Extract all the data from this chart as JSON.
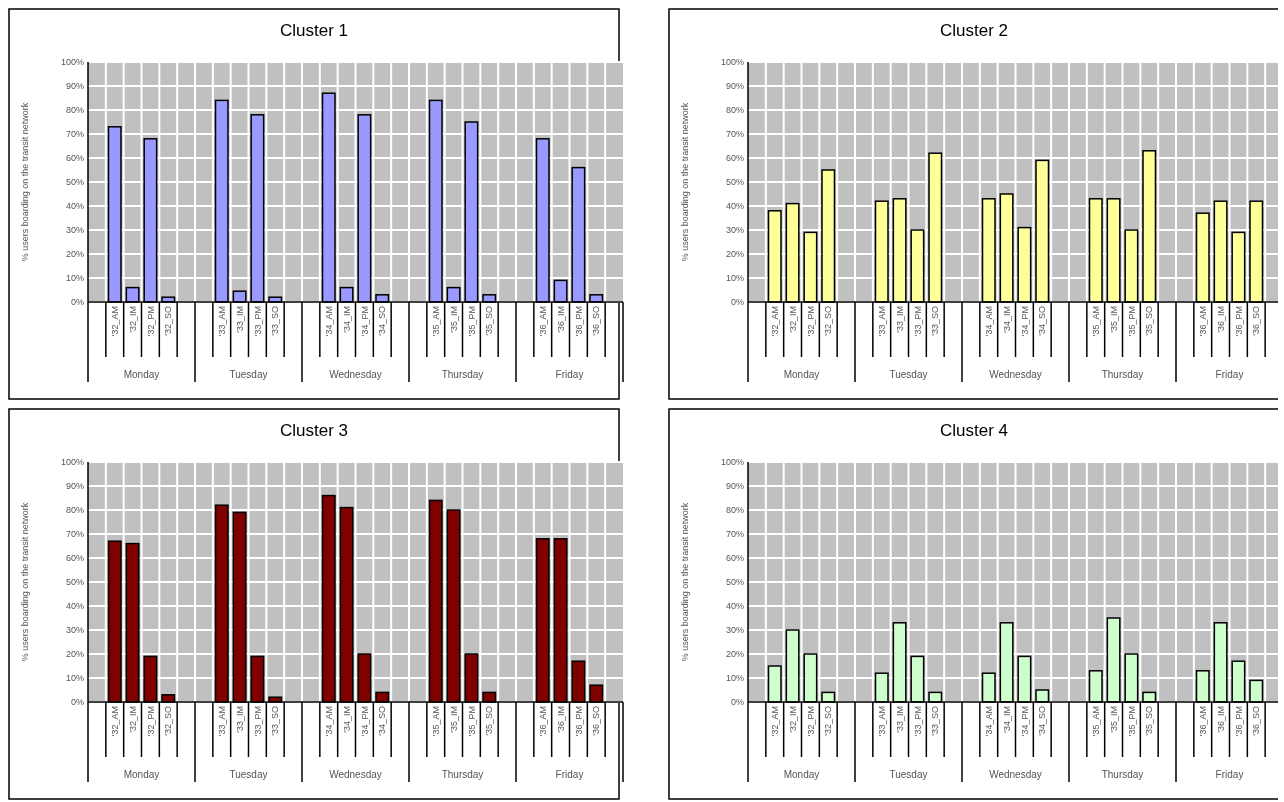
{
  "chart_data": [
    {
      "type": "bar",
      "title": "Cluster 1",
      "ylabel": "% users boarding on the transit network",
      "categories": [
        null,
        "'32_AM",
        "'32_IM",
        "'32_PM",
        "'32_SO",
        null,
        null,
        "'33_AM",
        "'33_IM",
        "'33_PM",
        "'33_SO",
        null,
        null,
        "'34_AM",
        "'34_IM",
        "'34_PM",
        "'34_SO",
        null,
        null,
        "'35_AM",
        "'35_IM",
        "'35_PM",
        "'35_SO",
        null,
        null,
        "'36_AM",
        "'36_IM",
        "'36_PM",
        "'36_SO",
        null
      ],
      "annotations": [
        "Monday",
        "Tuesday",
        "Wednesday",
        "Thursday",
        "Friday"
      ],
      "values": [
        null,
        73,
        6,
        68,
        2,
        null,
        null,
        84,
        4.5,
        78,
        2,
        null,
        null,
        87,
        6,
        78,
        3,
        null,
        null,
        84,
        6,
        75,
        3,
        null,
        null,
        68,
        9,
        56,
        3,
        null
      ],
      "color": "#9999ff",
      "ylim": [
        0,
        100
      ],
      "yticks": [
        {
          "value": 0,
          "label": "0%"
        },
        {
          "value": 10,
          "label": "10%"
        },
        {
          "value": 20,
          "label": "20%"
        },
        {
          "value": 30,
          "label": "30%"
        },
        {
          "value": 40,
          "label": "40%"
        },
        {
          "value": 50,
          "label": "50%"
        },
        {
          "value": 60,
          "label": "60%"
        },
        {
          "value": 70,
          "label": "70%"
        },
        {
          "value": 80,
          "label": "80%"
        },
        {
          "value": 90,
          "label": "90%"
        },
        {
          "value": 100,
          "label": "100%"
        }
      ],
      "grid": true
    },
    {
      "type": "bar",
      "title": "Cluster 2",
      "ylabel": "% users boarding on the transit network",
      "categories": [
        null,
        "'32_AM",
        "'32_IM",
        "'32_PM",
        "'32_SO",
        null,
        null,
        "'33_AM",
        "'33_IM",
        "'33_PM",
        "'33_SO",
        null,
        null,
        "'34_AM",
        "'34_IM",
        "'34_PM",
        "'34_SO",
        null,
        null,
        "'35_AM",
        "'35_IM",
        "'35_PM",
        "'35_SO",
        null,
        null,
        "'36_AM",
        "'36_IM",
        "'36_PM",
        "'36_SO",
        null
      ],
      "annotations": [
        "Monday",
        "Tuesday",
        "Wednesday",
        "Thursday",
        "Friday"
      ],
      "values": [
        null,
        38,
        41,
        29,
        55,
        null,
        null,
        42,
        43,
        30,
        62,
        null,
        null,
        43,
        45,
        31,
        59,
        null,
        null,
        43,
        43,
        30,
        63,
        null,
        null,
        37,
        42,
        29,
        42,
        null
      ],
      "color": "#ffff99",
      "ylim": [
        0,
        100
      ],
      "yticks": [
        {
          "value": 0,
          "label": "0%"
        },
        {
          "value": 10,
          "label": "10%"
        },
        {
          "value": 20,
          "label": "20%"
        },
        {
          "value": 30,
          "label": "30%"
        },
        {
          "value": 40,
          "label": "40%"
        },
        {
          "value": 50,
          "label": "50%"
        },
        {
          "value": 60,
          "label": "60%"
        },
        {
          "value": 70,
          "label": "70%"
        },
        {
          "value": 80,
          "label": "80%"
        },
        {
          "value": 90,
          "label": "90%"
        },
        {
          "value": 100,
          "label": "100%"
        }
      ],
      "grid": true
    },
    {
      "type": "bar",
      "title": "Cluster 3",
      "ylabel": "% users boarding on the transit network",
      "categories": [
        null,
        "'32_AM",
        "'32_IM",
        "'32_PM",
        "'32_SO",
        null,
        null,
        "'33_AM",
        "'33_IM",
        "'33_PM",
        "'33_SO",
        null,
        null,
        "'34_AM",
        "'34_IM",
        "'34_PM",
        "'34_SO",
        null,
        null,
        "'35_AM",
        "'35_IM",
        "'35_PM",
        "'35_SO",
        null,
        null,
        "'36_AM",
        "'36_IM",
        "'36_PM",
        "'36_SO",
        null
      ],
      "annotations": [
        "Monday",
        "Tuesday",
        "Wednesday",
        "Thursday",
        "Friday"
      ],
      "values": [
        null,
        67,
        66,
        19,
        3,
        null,
        null,
        82,
        79,
        19,
        2,
        null,
        null,
        86,
        81,
        20,
        4,
        null,
        null,
        84,
        80,
        20,
        4,
        null,
        null,
        68,
        68,
        17,
        7,
        null
      ],
      "color": "#800000",
      "ylim": [
        0,
        100
      ],
      "yticks": [
        {
          "value": 0,
          "label": "0%"
        },
        {
          "value": 10,
          "label": "10%"
        },
        {
          "value": 20,
          "label": "20%"
        },
        {
          "value": 30,
          "label": "30%"
        },
        {
          "value": 40,
          "label": "40%"
        },
        {
          "value": 50,
          "label": "50%"
        },
        {
          "value": 60,
          "label": "60%"
        },
        {
          "value": 70,
          "label": "70%"
        },
        {
          "value": 80,
          "label": "80%"
        },
        {
          "value": 90,
          "label": "90%"
        },
        {
          "value": 100,
          "label": "100%"
        }
      ],
      "grid": true
    },
    {
      "type": "bar",
      "title": "Cluster 4",
      "ylabel": "% users boarding on the transit network",
      "categories": [
        null,
        "'32_AM",
        "'32_IM",
        "'32_PM",
        "'32_SO",
        null,
        null,
        "'33_AM",
        "'33_IM",
        "'33_PM",
        "'33_SO",
        null,
        null,
        "'34_AM",
        "'34_IM",
        "'34_PM",
        "'34_SO",
        null,
        null,
        "'35_AM",
        "'35_IM",
        "'35_PM",
        "'35_SO",
        null,
        null,
        "'36_AM",
        "'36_IM",
        "'36_PM",
        "'36_SO",
        null
      ],
      "annotations": [
        "Monday",
        "Tuesday",
        "Wednesday",
        "Thursday",
        "Friday"
      ],
      "values": [
        null,
        15,
        30,
        20,
        4,
        null,
        null,
        12,
        33,
        19,
        4,
        null,
        null,
        12,
        33,
        19,
        5,
        null,
        null,
        13,
        35,
        20,
        4,
        null,
        null,
        13,
        33,
        17,
        9,
        null
      ],
      "color": "#ccffcc",
      "ylim": [
        0,
        100
      ],
      "yticks": [
        {
          "value": 0,
          "label": "0%"
        },
        {
          "value": 10,
          "label": "10%"
        },
        {
          "value": 20,
          "label": "20%"
        },
        {
          "value": 30,
          "label": "30%"
        },
        {
          "value": 40,
          "label": "40%"
        },
        {
          "value": 50,
          "label": "50%"
        },
        {
          "value": 60,
          "label": "60%"
        },
        {
          "value": 70,
          "label": "70%"
        },
        {
          "value": 80,
          "label": "80%"
        },
        {
          "value": 90,
          "label": "90%"
        },
        {
          "value": 100,
          "label": "100%"
        }
      ],
      "grid": true
    }
  ]
}
